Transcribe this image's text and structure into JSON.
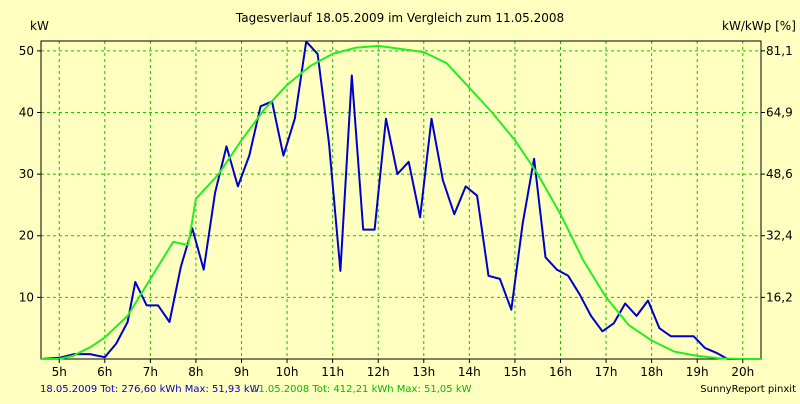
{
  "chart_data": {
    "type": "line",
    "title": "Tagesverlauf 18.05.2009 im Vergleich zum 11.05.2008",
    "ylabel_left": "kW",
    "ylabel_right": "kW/kWp [%]",
    "xlabel": "",
    "x_range": [
      4.6,
      20.4
    ],
    "ylim": [
      0,
      51.6
    ],
    "x_ticks": [
      {
        "x": 5,
        "label": "5h"
      },
      {
        "x": 6,
        "label": "6h"
      },
      {
        "x": 7,
        "label": "7h"
      },
      {
        "x": 8,
        "label": "8h"
      },
      {
        "x": 9,
        "label": "9h"
      },
      {
        "x": 10,
        "label": "10h"
      },
      {
        "x": 11,
        "label": "11h"
      },
      {
        "x": 12,
        "label": "12h"
      },
      {
        "x": 13,
        "label": "13h"
      },
      {
        "x": 14,
        "label": "14h"
      },
      {
        "x": 15,
        "label": "15h"
      },
      {
        "x": 16,
        "label": "16h"
      },
      {
        "x": 17,
        "label": "17h"
      },
      {
        "x": 18,
        "label": "18h"
      },
      {
        "x": 19,
        "label": "19h"
      },
      {
        "x": 20,
        "label": "20h"
      }
    ],
    "y_ticks_left": [
      {
        "y": 10,
        "label": "10"
      },
      {
        "y": 20,
        "label": "20"
      },
      {
        "y": 30,
        "label": "30"
      },
      {
        "y": 40,
        "label": "40"
      },
      {
        "y": 50,
        "label": "50"
      }
    ],
    "y_ticks_right": [
      {
        "y": 10.0,
        "label": "16,2"
      },
      {
        "y": 20.0,
        "label": "32,4"
      },
      {
        "y": 30.0,
        "label": "48,6"
      },
      {
        "y": 40.0,
        "label": "64,9"
      },
      {
        "y": 50.0,
        "label": "81,1"
      }
    ],
    "grid": true,
    "series": [
      {
        "name": "18.05.2009",
        "color": "#0000cc",
        "points": [
          [
            4.6,
            0
          ],
          [
            5.0,
            0.2
          ],
          [
            5.33,
            0.8
          ],
          [
            5.67,
            0.8
          ],
          [
            6.0,
            0.3
          ],
          [
            6.25,
            2.5
          ],
          [
            6.5,
            6
          ],
          [
            6.67,
            12.5
          ],
          [
            6.92,
            8.7
          ],
          [
            7.17,
            8.7
          ],
          [
            7.42,
            6
          ],
          [
            7.67,
            15
          ],
          [
            7.92,
            21.2
          ],
          [
            8.17,
            14.5
          ],
          [
            8.42,
            27
          ],
          [
            8.67,
            34.5
          ],
          [
            8.92,
            28
          ],
          [
            9.17,
            33
          ],
          [
            9.42,
            41
          ],
          [
            9.67,
            41.8
          ],
          [
            9.92,
            33
          ],
          [
            10.17,
            39
          ],
          [
            10.42,
            51.5
          ],
          [
            10.67,
            49.5
          ],
          [
            10.92,
            35
          ],
          [
            11.17,
            14.3
          ],
          [
            11.42,
            46
          ],
          [
            11.67,
            21
          ],
          [
            11.92,
            21
          ],
          [
            12.17,
            39
          ],
          [
            12.42,
            30
          ],
          [
            12.67,
            32
          ],
          [
            12.92,
            23
          ],
          [
            13.17,
            39
          ],
          [
            13.42,
            29
          ],
          [
            13.67,
            23.5
          ],
          [
            13.92,
            28
          ],
          [
            14.17,
            26.5
          ],
          [
            14.42,
            13.5
          ],
          [
            14.67,
            13
          ],
          [
            14.92,
            8
          ],
          [
            15.17,
            22
          ],
          [
            15.42,
            32.5
          ],
          [
            15.67,
            16.5
          ],
          [
            15.92,
            14.5
          ],
          [
            16.17,
            13.5
          ],
          [
            16.42,
            10.5
          ],
          [
            16.67,
            7
          ],
          [
            16.92,
            4.5
          ],
          [
            17.17,
            5.8
          ],
          [
            17.42,
            9
          ],
          [
            17.67,
            7
          ],
          [
            17.92,
            9.5
          ],
          [
            18.17,
            5
          ],
          [
            18.42,
            3.7
          ],
          [
            18.67,
            3.7
          ],
          [
            18.92,
            3.7
          ],
          [
            19.17,
            1.8
          ],
          [
            19.42,
            1
          ],
          [
            19.67,
            0
          ],
          [
            20.0,
            0
          ],
          [
            20.4,
            0
          ]
        ]
      },
      {
        "name": "11.05.2008",
        "color": "#22ee22",
        "points": [
          [
            4.6,
            0
          ],
          [
            5.0,
            0
          ],
          [
            5.3,
            0.5
          ],
          [
            5.7,
            2
          ],
          [
            6.0,
            3.5
          ],
          [
            6.5,
            7
          ],
          [
            7.0,
            13
          ],
          [
            7.5,
            19
          ],
          [
            7.83,
            18.5
          ],
          [
            8.0,
            26
          ],
          [
            8.5,
            30
          ],
          [
            9.0,
            35.5
          ],
          [
            9.5,
            40.5
          ],
          [
            10.0,
            44.5
          ],
          [
            10.5,
            47.5
          ],
          [
            11.0,
            49.5
          ],
          [
            11.5,
            50.5
          ],
          [
            12.0,
            50.8
          ],
          [
            12.5,
            50.3
          ],
          [
            13.0,
            49.8
          ],
          [
            13.5,
            48
          ],
          [
            14.0,
            44
          ],
          [
            14.5,
            40
          ],
          [
            15.0,
            35.5
          ],
          [
            15.5,
            30
          ],
          [
            16.0,
            23.5
          ],
          [
            16.5,
            16
          ],
          [
            17.0,
            10
          ],
          [
            17.5,
            5.5
          ],
          [
            18.0,
            3
          ],
          [
            18.5,
            1.2
          ],
          [
            19.0,
            0.5
          ],
          [
            19.5,
            0.1
          ],
          [
            20.0,
            0
          ],
          [
            20.4,
            0
          ]
        ]
      }
    ],
    "footer": {
      "series1_text": "18.05.2009 Tot: 276,60 kWh Max: 51,93 kW",
      "series2_text": "11.05.2008 Tot: 412,21 kWh Max: 51,05 kW",
      "credit": "SunnyReport pinxit"
    },
    "colors": {
      "background": "#ffffc0",
      "grid": "#00cc00",
      "axis": "#000000"
    }
  }
}
